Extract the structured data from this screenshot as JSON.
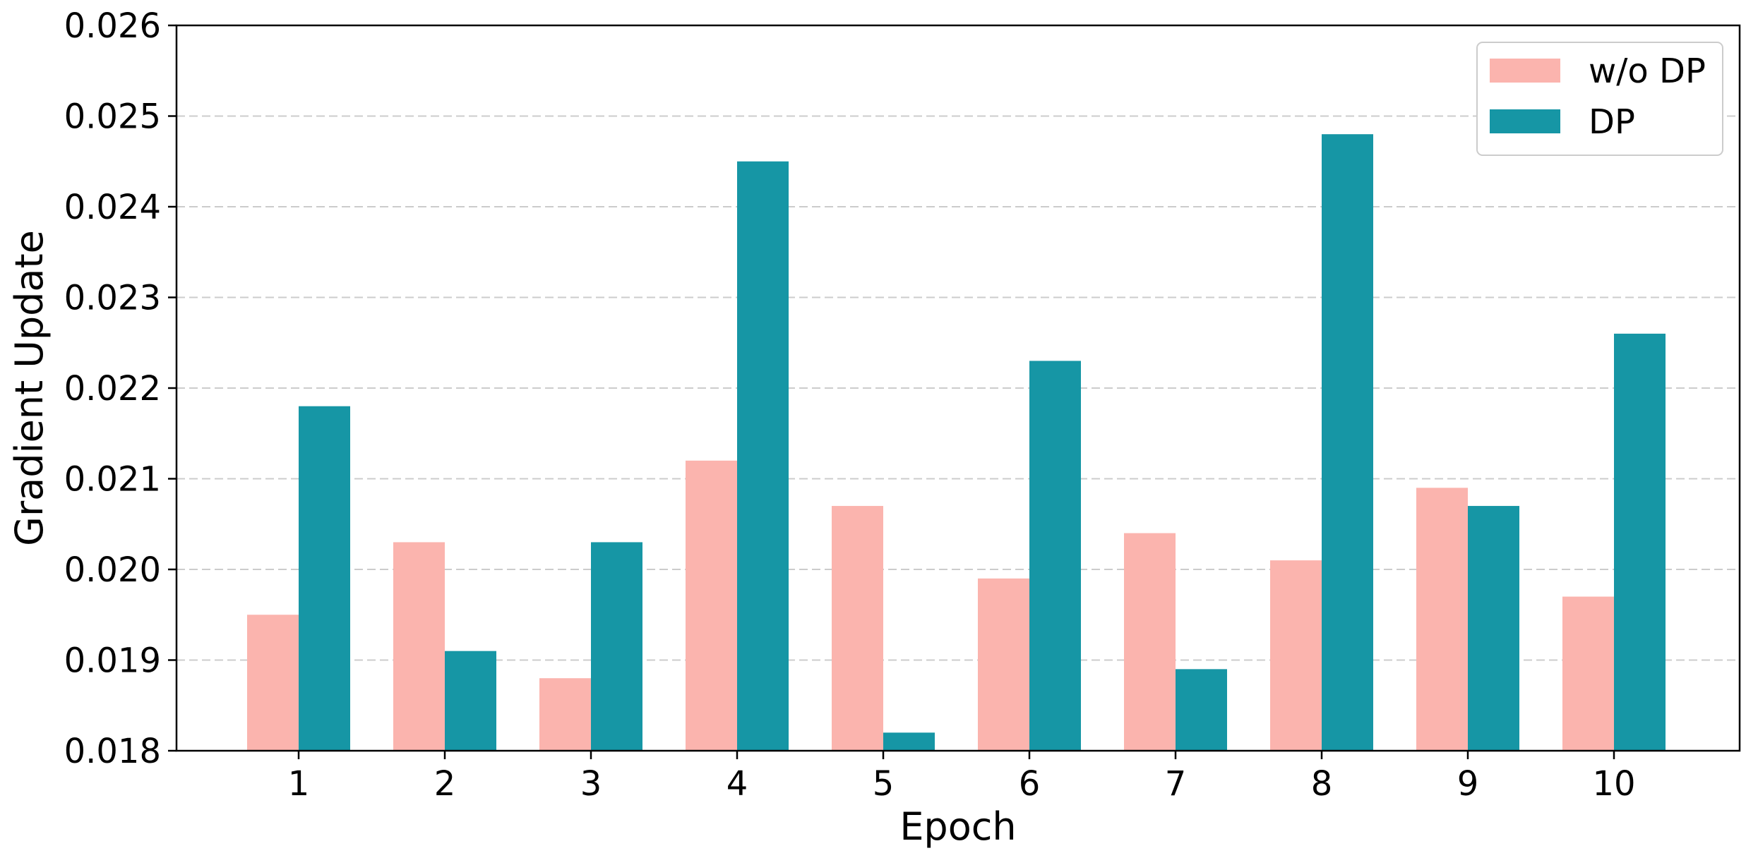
{
  "chart_data": {
    "type": "bar",
    "title": "",
    "xlabel": "Epoch",
    "ylabel": "Gradient Update",
    "categories": [
      "1",
      "2",
      "3",
      "4",
      "5",
      "6",
      "7",
      "8",
      "9",
      "10"
    ],
    "series": [
      {
        "name": "w/o DP",
        "color": "#fbb4ae",
        "values": [
          0.0195,
          0.0203,
          0.0188,
          0.0212,
          0.0207,
          0.0199,
          0.0204,
          0.0201,
          0.0209,
          0.0197
        ]
      },
      {
        "name": "DP",
        "color": "#1696a5",
        "values": [
          0.0218,
          0.0191,
          0.0203,
          0.0245,
          0.0182,
          0.0223,
          0.0189,
          0.0248,
          0.0207,
          0.0226
        ]
      }
    ],
    "ylim": [
      0.018,
      0.026
    ],
    "yticks": [
      0.018,
      0.019,
      0.02,
      0.021,
      0.022,
      0.023,
      0.024,
      0.025,
      0.026
    ],
    "ytick_labels": [
      "0.018",
      "0.019",
      "0.020",
      "0.021",
      "0.022",
      "0.023",
      "0.024",
      "0.025",
      "0.026"
    ],
    "grid": "horizontal dashed",
    "legend_position": "top-right"
  }
}
